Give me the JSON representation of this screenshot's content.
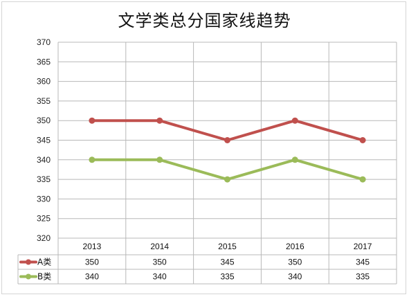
{
  "chart_data": {
    "type": "line",
    "title": "文学类总分国家线趋势",
    "categories": [
      "2013",
      "2014",
      "2015",
      "2016",
      "2017"
    ],
    "series": [
      {
        "name": "A类",
        "values": [
          350,
          350,
          345,
          350,
          345
        ],
        "color": "#c0504d"
      },
      {
        "name": "B类",
        "values": [
          340,
          340,
          335,
          340,
          335
        ],
        "color": "#9bbb59"
      }
    ],
    "xlabel": "",
    "ylabel": "",
    "ylim": [
      320,
      370
    ],
    "ytick_step": 5,
    "grid": true,
    "legend": "data-table-left",
    "data_table": true
  }
}
